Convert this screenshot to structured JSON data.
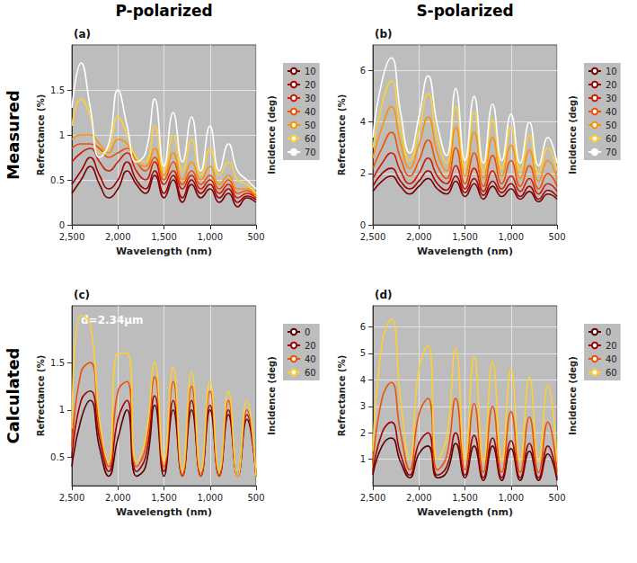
{
  "figure": {
    "column_titles": [
      "P-polarized",
      "S-polarized"
    ],
    "row_titles": [
      "Measured",
      "Calculated"
    ]
  },
  "chart_data": [
    {
      "type": "line",
      "title": "(a)",
      "x_label": "Wavelength (nm)",
      "y_label": "Refrectance (%)",
      "legend_title": "Incidence (deg)",
      "x": [
        500,
        600,
        700,
        800,
        900,
        1000,
        1100,
        1200,
        1300,
        1400,
        1500,
        1600,
        1700,
        1800,
        1900,
        2000,
        2100,
        2200,
        2300,
        2400,
        2500
      ],
      "xlim": [
        2500,
        500
      ],
      "xticks": [
        {
          "value": 2500,
          "label": "2,500"
        },
        {
          "value": 2000,
          "label": "2,000"
        },
        {
          "value": 1500,
          "label": "1,500"
        },
        {
          "value": 1000,
          "label": "1,000"
        },
        500
      ],
      "ylim": [
        0,
        2
      ],
      "yticks": [
        0,
        0.5,
        1,
        1.5
      ],
      "grid": true,
      "legend": "right",
      "series": [
        {
          "name": "10",
          "color": "#7a0000",
          "values": [
            0.25,
            0.3,
            0.2,
            0.35,
            0.25,
            0.4,
            0.3,
            0.45,
            0.25,
            0.5,
            0.3,
            0.55,
            0.35,
            0.45,
            0.6,
            0.4,
            0.3,
            0.45,
            0.65,
            0.5,
            0.35
          ]
        },
        {
          "name": "20",
          "color": "#a00000",
          "values": [
            0.28,
            0.32,
            0.25,
            0.4,
            0.3,
            0.45,
            0.35,
            0.5,
            0.3,
            0.55,
            0.35,
            0.6,
            0.4,
            0.5,
            0.7,
            0.5,
            0.4,
            0.55,
            0.75,
            0.6,
            0.45
          ]
        },
        {
          "name": "30",
          "color": "#d01a00",
          "values": [
            0.3,
            0.35,
            0.3,
            0.45,
            0.35,
            0.5,
            0.4,
            0.55,
            0.4,
            0.6,
            0.45,
            0.7,
            0.5,
            0.6,
            0.8,
            0.7,
            0.6,
            0.7,
            0.85,
            0.8,
            0.7
          ]
        },
        {
          "name": "40",
          "color": "#f05000",
          "values": [
            0.3,
            0.38,
            0.35,
            0.5,
            0.4,
            0.55,
            0.45,
            0.6,
            0.45,
            0.7,
            0.5,
            0.75,
            0.6,
            0.7,
            0.85,
            0.8,
            0.75,
            0.85,
            0.9,
            0.9,
            0.85
          ]
        },
        {
          "name": "50",
          "color": "#ff9000",
          "values": [
            0.32,
            0.4,
            0.4,
            0.55,
            0.45,
            0.65,
            0.5,
            0.7,
            0.5,
            0.8,
            0.55,
            0.85,
            0.65,
            0.7,
            0.9,
            0.95,
            0.8,
            0.9,
            1.0,
            1.0,
            0.95
          ]
        },
        {
          "name": "60",
          "color": "#ffd030",
          "values": [
            0.35,
            0.45,
            0.5,
            0.7,
            0.55,
            0.85,
            0.55,
            0.95,
            0.6,
            1.0,
            0.6,
            1.1,
            0.7,
            0.75,
            1.0,
            1.2,
            0.85,
            0.8,
            1.2,
            1.4,
            1.1
          ]
        },
        {
          "name": "70",
          "color": "#ffffff",
          "values": [
            0.4,
            0.5,
            0.6,
            0.9,
            0.6,
            1.1,
            0.6,
            1.2,
            0.7,
            1.25,
            0.65,
            1.4,
            0.8,
            0.7,
            1.1,
            1.5,
            0.9,
            0.75,
            1.3,
            1.8,
            1.3
          ]
        }
      ]
    },
    {
      "type": "line",
      "title": "(b)",
      "x_label": "Wavelength (nm)",
      "y_label": "Refrectance (%)",
      "legend_title": "Incidence (deg)",
      "x": [
        500,
        600,
        700,
        800,
        900,
        1000,
        1100,
        1200,
        1300,
        1400,
        1500,
        1600,
        1700,
        1800,
        1900,
        2000,
        2100,
        2200,
        2300,
        2400,
        2500
      ],
      "xlim": [
        2500,
        500
      ],
      "xticks": [
        {
          "value": 2500,
          "label": "2,500"
        },
        {
          "value": 2000,
          "label": "2,000"
        },
        {
          "value": 1500,
          "label": "1,500"
        },
        {
          "value": 1000,
          "label": "1,000"
        },
        500
      ],
      "ylim": [
        0,
        7
      ],
      "yticks": [
        0,
        2,
        4,
        6
      ],
      "grid": true,
      "legend": "right",
      "series": [
        {
          "name": "10",
          "color": "#7a0000",
          "values": [
            1.0,
            1.2,
            0.9,
            1.3,
            1.0,
            1.4,
            1.1,
            1.5,
            1.0,
            1.6,
            1.1,
            1.7,
            1.2,
            1.4,
            1.8,
            1.5,
            1.2,
            1.5,
            1.9,
            1.7,
            1.3
          ]
        },
        {
          "name": "20",
          "color": "#a00000",
          "values": [
            1.1,
            1.35,
            1.0,
            1.5,
            1.1,
            1.6,
            1.25,
            1.7,
            1.15,
            1.8,
            1.25,
            1.9,
            1.35,
            1.6,
            2.1,
            1.7,
            1.4,
            1.7,
            2.2,
            2.0,
            1.5
          ]
        },
        {
          "name": "30",
          "color": "#d01a00",
          "values": [
            1.3,
            1.6,
            1.2,
            1.8,
            1.3,
            1.9,
            1.4,
            2.1,
            1.3,
            2.2,
            1.4,
            2.3,
            1.6,
            1.9,
            2.6,
            2.0,
            1.6,
            2.1,
            2.8,
            2.4,
            1.8
          ]
        },
        {
          "name": "40",
          "color": "#f05000",
          "values": [
            1.5,
            2.0,
            1.4,
            2.3,
            1.5,
            2.5,
            1.6,
            2.7,
            1.5,
            2.8,
            1.6,
            3.0,
            1.8,
            2.3,
            3.3,
            2.5,
            1.9,
            2.6,
            3.6,
            3.0,
            2.2
          ]
        },
        {
          "name": "50",
          "color": "#ff9000",
          "values": [
            1.8,
            2.5,
            1.7,
            2.9,
            1.8,
            3.1,
            1.9,
            3.4,
            1.8,
            3.6,
            1.9,
            3.8,
            2.1,
            2.8,
            4.2,
            3.1,
            2.2,
            3.2,
            4.6,
            3.8,
            2.6
          ]
        },
        {
          "name": "60",
          "color": "#ffd030",
          "values": [
            2.1,
            3.0,
            2.0,
            3.5,
            2.1,
            3.8,
            2.2,
            4.1,
            2.1,
            4.4,
            2.2,
            4.6,
            2.4,
            3.4,
            5.1,
            3.7,
            2.5,
            3.8,
            5.6,
            4.7,
            3.0
          ]
        },
        {
          "name": "70",
          "color": "#ffffff",
          "values": [
            2.4,
            3.4,
            2.3,
            4.0,
            2.4,
            4.3,
            2.5,
            4.7,
            2.4,
            5.0,
            2.5,
            5.3,
            2.7,
            3.9,
            5.8,
            4.2,
            2.8,
            4.4,
            6.5,
            5.6,
            3.4
          ]
        }
      ]
    },
    {
      "type": "line",
      "title": "(c)",
      "x_label": "Wavelength (nm)",
      "y_label": "Refrectance (%)",
      "legend_title": "Incidence (deg)",
      "annotations": [
        "d=2.34μm"
      ],
      "x": [
        500,
        600,
        700,
        800,
        900,
        1000,
        1100,
        1200,
        1300,
        1400,
        1500,
        1600,
        1700,
        1800,
        1900,
        2000,
        2100,
        2200,
        2300,
        2400,
        2500
      ],
      "xlim": [
        2500,
        500
      ],
      "xticks": [
        {
          "value": 2500,
          "label": "2,500"
        },
        {
          "value": 2000,
          "label": "2,000"
        },
        {
          "value": 1500,
          "label": "1,500"
        },
        {
          "value": 1000,
          "label": "1,000"
        },
        500
      ],
      "ylim": [
        0.2,
        2.1
      ],
      "yticks": [
        0.5,
        1,
        1.5
      ],
      "grid": true,
      "legend": "right",
      "series": [
        {
          "name": "0",
          "color": "#5a0000",
          "values": [
            0.3,
            0.9,
            0.3,
            0.95,
            0.3,
            1.0,
            0.3,
            1.0,
            0.3,
            1.0,
            0.3,
            1.05,
            0.4,
            0.3,
            1.0,
            0.7,
            0.3,
            0.6,
            1.1,
            0.9,
            0.4
          ]
        },
        {
          "name": "20",
          "color": "#a00000",
          "values": [
            0.3,
            0.95,
            0.3,
            1.0,
            0.3,
            1.05,
            0.3,
            1.1,
            0.3,
            1.1,
            0.35,
            1.15,
            0.5,
            0.35,
            1.1,
            0.9,
            0.35,
            0.7,
            1.2,
            1.1,
            0.5
          ]
        },
        {
          "name": "40",
          "color": "#f05000",
          "values": [
            0.3,
            1.0,
            0.3,
            1.1,
            0.3,
            1.2,
            0.3,
            1.25,
            0.3,
            1.3,
            0.4,
            1.35,
            0.6,
            0.4,
            1.3,
            1.2,
            0.4,
            0.8,
            1.5,
            1.4,
            0.6
          ]
        },
        {
          "name": "60",
          "color": "#ffd030",
          "values": [
            0.3,
            1.1,
            0.3,
            1.2,
            0.35,
            1.3,
            0.35,
            1.4,
            0.35,
            1.45,
            0.45,
            1.5,
            0.7,
            0.45,
            1.6,
            1.6,
            0.45,
            0.9,
            1.9,
            2.0,
            0.8
          ]
        }
      ]
    },
    {
      "type": "line",
      "title": "(d)",
      "x_label": "Wavelength (nm)",
      "y_label": "Refrectance (%)",
      "legend_title": "Incidence (deg)",
      "x": [
        500,
        600,
        700,
        800,
        900,
        1000,
        1100,
        1200,
        1300,
        1400,
        1500,
        1600,
        1700,
        1800,
        1900,
        2000,
        2100,
        2200,
        2300,
        2400,
        2500
      ],
      "xlim": [
        2500,
        500
      ],
      "xticks": [
        {
          "value": 2500,
          "label": "2,500"
        },
        {
          "value": 2000,
          "label": "2,000"
        },
        {
          "value": 1500,
          "label": "1,500"
        },
        {
          "value": 1000,
          "label": "1,000"
        },
        500
      ],
      "ylim": [
        0,
        6.8
      ],
      "yticks": [
        1,
        2,
        3,
        4,
        5,
        6
      ],
      "grid": true,
      "legend": "right",
      "series": [
        {
          "name": "0",
          "color": "#5a0000",
          "values": [
            0.2,
            1.2,
            0.2,
            1.3,
            0.2,
            1.4,
            0.2,
            1.5,
            0.2,
            1.5,
            0.3,
            1.6,
            0.5,
            0.3,
            1.5,
            1.2,
            0.3,
            0.9,
            1.8,
            1.5,
            0.4
          ]
        },
        {
          "name": "20",
          "color": "#a00000",
          "values": [
            0.3,
            1.5,
            0.3,
            1.6,
            0.3,
            1.7,
            0.3,
            1.8,
            0.3,
            1.9,
            0.4,
            2.0,
            0.7,
            0.4,
            2.0,
            1.6,
            0.4,
            1.2,
            2.4,
            2.0,
            0.5
          ]
        },
        {
          "name": "40",
          "color": "#f05000",
          "values": [
            0.5,
            2.4,
            0.5,
            2.6,
            0.5,
            2.8,
            0.5,
            3.0,
            0.5,
            3.1,
            0.6,
            3.3,
            1.1,
            0.6,
            3.3,
            2.7,
            0.6,
            2.0,
            3.9,
            3.3,
            0.8
          ]
        },
        {
          "name": "60",
          "color": "#ffd030",
          "values": [
            0.9,
            3.8,
            0.9,
            4.1,
            0.9,
            4.4,
            0.9,
            4.7,
            0.9,
            4.9,
            1.0,
            5.2,
            1.8,
            1.0,
            5.3,
            4.4,
            1.0,
            3.3,
            6.3,
            5.4,
            1.3
          ]
        }
      ]
    }
  ]
}
